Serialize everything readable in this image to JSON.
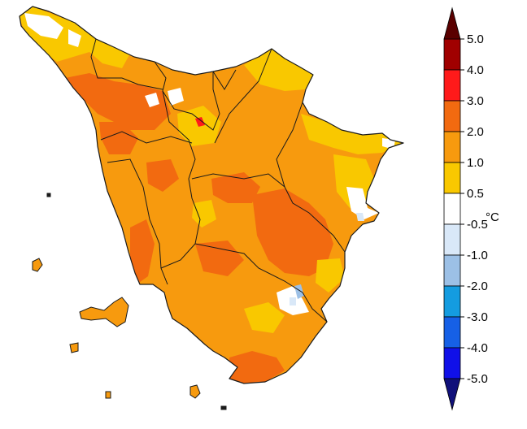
{
  "legend": {
    "unit": "°C",
    "tick_labels": [
      "5.0",
      "4.0",
      "3.0",
      "2.0",
      "1.0",
      "0.5",
      "-0.5",
      "-1.0",
      "-2.0",
      "-3.0",
      "-4.0",
      "-5.0"
    ],
    "bins": [
      {
        "range": "4.0 to 5.0",
        "color": "#a00000"
      },
      {
        "range": "3.0 to 4.0",
        "color": "#ff1a1a"
      },
      {
        "range": "2.0 to 3.0",
        "color": "#f26a10"
      },
      {
        "range": "1.0 to 2.0",
        "color": "#f79a0e"
      },
      {
        "range": "0.5 to 1.0",
        "color": "#f9c800"
      },
      {
        "range": "-0.5 to 0.5",
        "color": "#ffffff"
      },
      {
        "range": "-1.0 to -0.5",
        "color": "#d9e8f8"
      },
      {
        "range": "-2.0 to -1.0",
        "color": "#9cc0e6"
      },
      {
        "range": "-3.0 to -2.0",
        "color": "#149ce0"
      },
      {
        "range": "-4.0 to -3.0",
        "color": "#1660e6"
      },
      {
        "range": "-5.0 to -4.0",
        "color": "#1010e8"
      }
    ],
    "over_color": "#5a0000",
    "under_color": "#10107a"
  },
  "map": {
    "region_base_color": "#f79a0e",
    "boundary_color": "#1a1a1a"
  }
}
